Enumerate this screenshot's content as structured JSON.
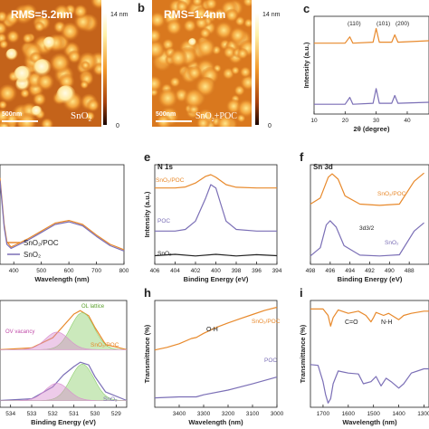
{
  "afm": [
    {
      "panel": "",
      "rms": "RMS=5.2nm",
      "scale_max": "14 nm",
      "scale_min": "0",
      "scalebar": "500nm",
      "sample": "SnO2"
    },
    {
      "panel": "b",
      "rms": "RMS=1.4nm",
      "scale_max": "14 nm",
      "scale_min": "0",
      "scalebar": "500nm",
      "sample": "SnO2+POC"
    }
  ],
  "chart_data": [
    {
      "id": "c",
      "type": "line",
      "panel_label": "c",
      "xlabel": "2θ (degree)",
      "ylabel": "Intensity (a.u.)",
      "xlim": [
        10,
        47
      ],
      "xticks": [
        10,
        20,
        30,
        40
      ],
      "annotations": [
        "(110)",
        "(101)",
        "(200)"
      ],
      "series": [
        {
          "color": "#E8892B",
          "x": [
            10,
            20,
            21.5,
            22.5,
            29,
            30,
            31,
            35,
            36,
            37,
            47
          ],
          "y": [
            1.45,
            1.45,
            1.58,
            1.45,
            1.47,
            1.75,
            1.47,
            1.47,
            1.62,
            1.47,
            1.5
          ]
        },
        {
          "color": "#7B6FB6",
          "x": [
            10,
            20,
            21.5,
            22.5,
            29,
            30,
            31,
            35,
            36,
            37,
            47
          ],
          "y": [
            0.2,
            0.2,
            0.34,
            0.2,
            0.22,
            0.52,
            0.22,
            0.22,
            0.38,
            0.22,
            0.24
          ]
        }
      ]
    },
    {
      "id": "d",
      "type": "line",
      "panel_label": "",
      "xlabel": "Wavelength (nm)",
      "ylabel": "",
      "xlim": [
        350,
        800
      ],
      "xticks": [
        400,
        500,
        600,
        700,
        800
      ],
      "legend": [
        "SnO2/POC",
        "SnO2"
      ],
      "series": [
        {
          "name": "SnO2/POC",
          "color": "#E8892B",
          "x": [
            350,
            365,
            375,
            390,
            410,
            450,
            500,
            550,
            600,
            650,
            700,
            750,
            800
          ],
          "y": [
            0.9,
            0.55,
            0.42,
            0.38,
            0.4,
            0.44,
            0.5,
            0.56,
            0.58,
            0.55,
            0.47,
            0.4,
            0.36
          ]
        },
        {
          "name": "SnO2",
          "color": "#7B6FB6",
          "x": [
            350,
            365,
            375,
            390,
            410,
            450,
            500,
            550,
            600,
            650,
            700,
            750,
            800
          ],
          "y": [
            0.88,
            0.53,
            0.4,
            0.37,
            0.39,
            0.43,
            0.49,
            0.55,
            0.57,
            0.54,
            0.46,
            0.39,
            0.35
          ]
        }
      ]
    },
    {
      "id": "e",
      "type": "line",
      "panel_label": "e",
      "title": "N 1s",
      "xlabel": "Binding Energy (eV)",
      "ylabel": "Intensity (a.u.)",
      "xlim": [
        406,
        394
      ],
      "xticks": [
        406,
        404,
        402,
        400,
        398,
        396,
        394
      ],
      "series": [
        {
          "name": "SnO2/POC",
          "color": "#E8892B",
          "x": [
            406,
            404,
            403,
            402,
            401,
            400.5,
            400,
            399,
            398,
            396,
            394
          ],
          "y": [
            2.1,
            2.1,
            2.13,
            2.25,
            2.45,
            2.5,
            2.42,
            2.2,
            2.12,
            2.1,
            2.1
          ]
        },
        {
          "name": "POC",
          "color": "#7B6FB6",
          "x": [
            406,
            404,
            403,
            402,
            401,
            400.5,
            400,
            399.5,
            399,
            398,
            396,
            394
          ],
          "y": [
            0.8,
            0.8,
            0.85,
            1.1,
            1.8,
            2.2,
            2.1,
            1.6,
            1.1,
            0.85,
            0.8,
            0.8
          ]
        },
        {
          "name": "SnO2",
          "color": "#222222",
          "x": [
            406,
            404,
            402,
            400,
            398,
            396,
            394
          ],
          "y": [
            0.06,
            0.1,
            0.05,
            0.1,
            0.05,
            0.09,
            0.06
          ]
        }
      ]
    },
    {
      "id": "f",
      "type": "line",
      "panel_label": "f",
      "title": "Sn 3d",
      "xlabel": "Binding Energy (eV)",
      "ylabel": "",
      "xlim": [
        498,
        486
      ],
      "xticks": [
        498,
        496,
        494,
        492,
        490,
        488
      ],
      "annotations": [
        "3d3/2"
      ],
      "series": [
        {
          "name": "SnO2/POC",
          "color": "#E8892B",
          "x": [
            498,
            497,
            496.2,
            495.8,
            495.2,
            494.5,
            493,
            491,
            489,
            487.5,
            486.5
          ],
          "y": [
            1.55,
            1.7,
            2.2,
            2.28,
            2.15,
            1.75,
            1.55,
            1.52,
            1.55,
            2.1,
            2.3
          ]
        },
        {
          "name": "SnO2",
          "color": "#7B6FB6",
          "x": [
            498,
            497,
            496.4,
            496,
            495.4,
            494.6,
            493,
            491,
            489,
            487.5,
            486.5
          ],
          "y": [
            0.3,
            0.5,
            1.05,
            1.15,
            1.0,
            0.55,
            0.32,
            0.3,
            0.33,
            0.9,
            1.1
          ]
        }
      ]
    },
    {
      "id": "g",
      "type": "area",
      "panel_label": "",
      "xlabel": "Binding Energy (eV)",
      "ylabel": "",
      "xlim": [
        534.5,
        528.5
      ],
      "xticks": [
        534,
        533,
        532,
        531,
        530,
        529
      ],
      "annotations": [
        "OL lattice",
        "OV vacancy"
      ],
      "series": [
        {
          "name": "SnO2/POC",
          "color": "#E8892B",
          "x": [
            534.5,
            533,
            532,
            531.5,
            531,
            530.7,
            530.3,
            530,
            529.5,
            528.5
          ],
          "y": [
            1.55,
            1.6,
            1.9,
            2.25,
            2.6,
            2.7,
            2.55,
            2.2,
            1.7,
            1.55
          ]
        },
        {
          "name": "SnO2",
          "color": "#7B6FB6",
          "x": [
            534.5,
            533,
            532,
            531.5,
            531,
            530.7,
            530.3,
            530,
            529.5,
            528.5
          ],
          "y": [
            0.05,
            0.1,
            0.45,
            0.8,
            1.05,
            1.18,
            1.1,
            0.75,
            0.3,
            0.05
          ]
        }
      ]
    },
    {
      "id": "h",
      "type": "line",
      "panel_label": "h",
      "xlabel": "Wavelength (nm)",
      "ylabel": "Transmittance (%)",
      "xlim": [
        3500,
        3000
      ],
      "xticks": [
        3400,
        3300,
        3200,
        3100,
        3000
      ],
      "annotations": [
        "O-H"
      ],
      "series": [
        {
          "name": "SnO2/POC",
          "color": "#E8892B",
          "x": [
            3500,
            3450,
            3400,
            3350,
            3330,
            3300,
            3250,
            3200,
            3150,
            3100,
            3050,
            3000
          ],
          "y": [
            1.4,
            1.45,
            1.52,
            1.62,
            1.64,
            1.72,
            1.83,
            1.92,
            2.0,
            2.08,
            2.16,
            2.22
          ]
        },
        {
          "name": "POC",
          "color": "#7B6FB6",
          "x": [
            3500,
            3400,
            3330,
            3300,
            3200,
            3100,
            3000
          ],
          "y": [
            0.48,
            0.5,
            0.5,
            0.54,
            0.63,
            0.75,
            0.88
          ]
        }
      ]
    },
    {
      "id": "i",
      "type": "line",
      "panel_label": "i",
      "xlabel": "Wavelength (nm)",
      "ylabel": "Transmittance (%)",
      "xlim": [
        1750,
        1280
      ],
      "xticks": [
        1700,
        1600,
        1500,
        1400,
        1300
      ],
      "annotations": [
        "C=O",
        "N-H"
      ],
      "series": [
        {
          "name": "SnO2/POC",
          "color": "#E8892B",
          "x": [
            1750,
            1700,
            1680,
            1670,
            1660,
            1640,
            1600,
            1560,
            1530,
            1510,
            1500,
            1490,
            1460,
            1440,
            1400,
            1380,
            1350,
            1300,
            1280
          ],
          "y": [
            2.3,
            2.3,
            2.15,
            1.9,
            2.1,
            2.28,
            2.2,
            2.25,
            2.15,
            2.0,
            2.1,
            2.22,
            2.15,
            2.2,
            2.05,
            2.15,
            2.2,
            2.25,
            2.25
          ]
        },
        {
          "name": "",
          "color": "#7B6FB6",
          "x": [
            1750,
            1720,
            1700,
            1690,
            1680,
            1670,
            1660,
            1640,
            1600,
            1560,
            1540,
            1510,
            1490,
            1470,
            1450,
            1430,
            1400,
            1380,
            1350,
            1300,
            1280
          ],
          "y": [
            1.0,
            0.98,
            0.6,
            0.3,
            0.1,
            0.2,
            0.55,
            0.85,
            0.8,
            0.78,
            0.55,
            0.6,
            0.72,
            0.5,
            0.68,
            0.6,
            0.45,
            0.55,
            0.8,
            0.9,
            0.9
          ]
        }
      ]
    }
  ],
  "labels": {
    "c_peak_110": "(110)",
    "c_peak_101": "(101)",
    "c_peak_200": "(200)",
    "d_legend_1": "SnO₂/POC",
    "d_legend_2": "SnO₂",
    "e_title": "N 1s",
    "e_s1": "SnO₂/POC",
    "e_s2": "POC",
    "e_s3": "SnO₂",
    "f_title": "Sn 3d",
    "f_s1": "SnO₂/POC",
    "f_s2": "SnO₂",
    "f_peak": "3d3/2",
    "g_lattice": "OL lattice",
    "g_vacancy": "OV vacancy",
    "g_s1": "SnO₂/POC",
    "g_s2": "SnO₂",
    "h_oh": "O-H",
    "h_s1": "SnO₂/POC",
    "h_s2": "POC",
    "i_co": "C=O",
    "i_nh": "N-H"
  }
}
